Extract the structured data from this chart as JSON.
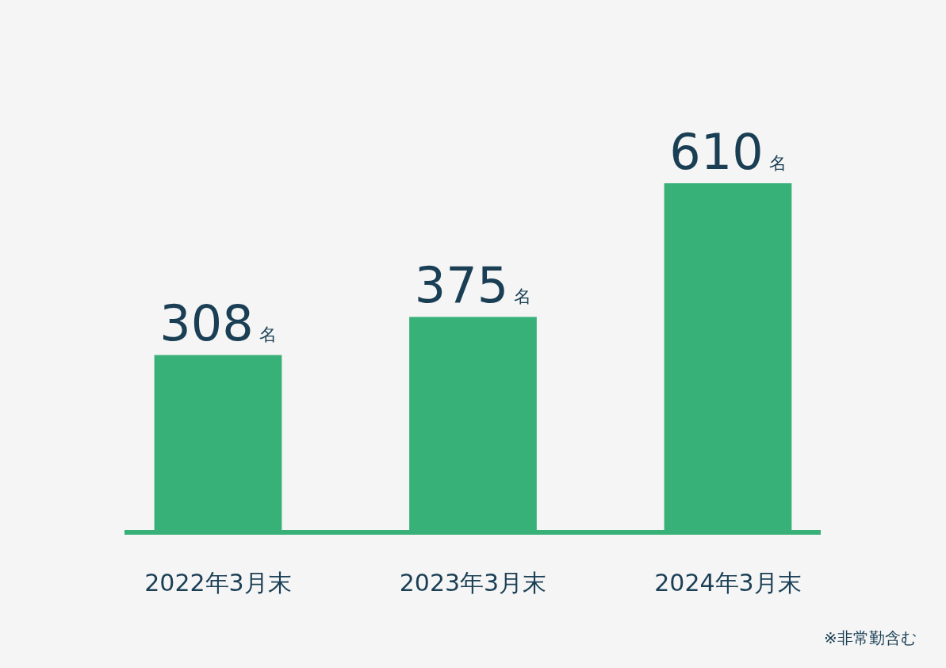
{
  "chart_data": {
    "type": "bar",
    "categories": [
      "2022年3月末",
      "2023年3月末",
      "2024年3月末"
    ],
    "values": [
      308,
      375,
      610
    ],
    "color": "#38b179",
    "value_labels": [
      "308名",
      "375名",
      "610名"
    ],
    "annotations": [
      "※非常勤含む"
    ],
    "grid": false,
    "legend": false
  }
}
